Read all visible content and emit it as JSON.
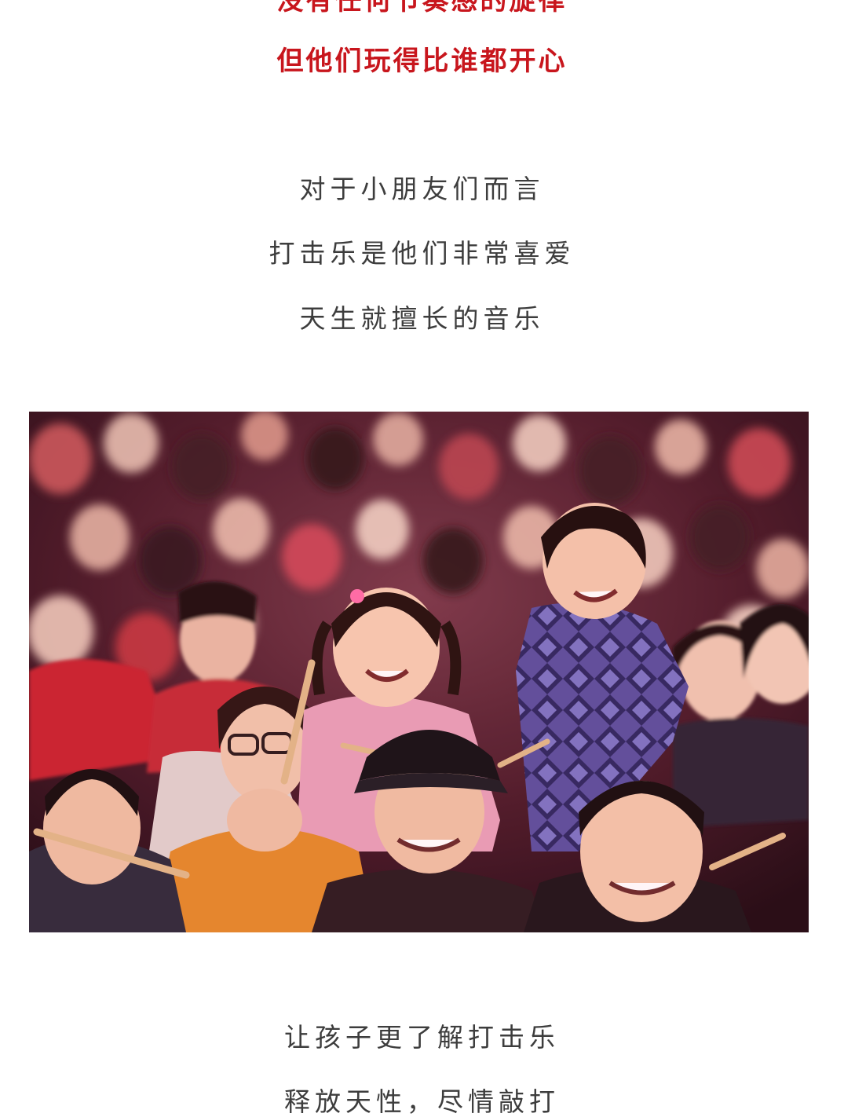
{
  "intro": {
    "line1": "没有任何节奏感的旋律",
    "line2": "但他们玩得比谁都开心"
  },
  "section1": {
    "lines": [
      "对于小朋友们而言",
      "打击乐是他们非常喜爱",
      "天生就擅长的音乐"
    ]
  },
  "photo": {
    "subject": "concert-audience-children-drumsticks"
  },
  "section2": {
    "lines": [
      "让孩子更了解打击乐",
      "释放天性，尽情敲打"
    ]
  },
  "colors": {
    "accent_red": "#c8161d",
    "body_gray": "#3d3d3d"
  }
}
